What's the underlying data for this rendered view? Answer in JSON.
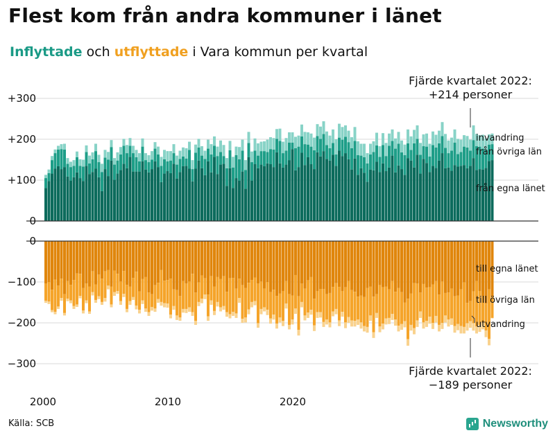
{
  "title": "Flest kom från andra kommuner i länet",
  "subtitle": {
    "part1": "Inflyttade",
    "part2": " och ",
    "part3": "utflyttade",
    "part4": " i Vara kommun per kvartal"
  },
  "annotations": {
    "top": [
      "Fjärde kvartalet 2022:",
      "+214 personer"
    ],
    "bottom": [
      "Fjärde kvartalet 2022:",
      "−189 personer"
    ]
  },
  "source": "Källa: SCB",
  "brand": "Newsworthy",
  "colors": {
    "in_dark": "#0c6b5c",
    "in_mid": "#1e9e88",
    "in_light": "#88d3c7",
    "out_dark": "#e0860c",
    "out_mid": "#f5a42a",
    "out_light": "#f9d28e",
    "grid": "#d8d8d8"
  },
  "chart_data": {
    "type": "bar",
    "stacked": true,
    "x_start": 2000,
    "quarters_per_year": 4,
    "x_ticks": [
      "2000",
      "2010",
      "2020"
    ],
    "y_ticks": [
      "+300",
      "+200",
      "+100",
      "0",
      "0",
      "−100",
      "−200",
      "−300"
    ],
    "ylim_in": [
      0,
      300
    ],
    "ylim_out": [
      -300,
      0
    ],
    "series_labels": {
      "in": [
        "invandring",
        "från övriga län",
        "från egna länet"
      ],
      "out": [
        "till egna länet",
        "till övriga län",
        "utvandring"
      ]
    },
    "inflow": {
      "fran_egna_lanet": [
        81,
        98,
        116,
        128,
        134,
        127,
        132,
        109,
        99,
        107,
        119,
        105,
        98,
        135,
        115,
        120,
        128,
        107,
        73,
        127,
        110,
        148,
        101,
        116,
        125,
        140,
        129,
        157,
        121,
        121,
        121,
        146,
        126,
        119,
        127,
        146,
        132,
        95,
        116,
        122,
        117,
        140,
        104,
        120,
        134,
        135,
        128,
        97,
        128,
        148,
        129,
        112,
        146,
        119,
        157,
        115,
        138,
        140,
        86,
        129,
        81,
        105,
        99,
        121,
        79,
        156,
        99,
        139,
        129,
        138,
        134,
        141,
        139,
        132,
        168,
        141,
        131,
        138,
        149,
        176,
        124,
        132,
        167,
        137,
        156,
        139,
        127,
        168,
        158,
        171,
        152,
        148,
        162,
        135,
        172,
        159,
        166,
        151,
        126,
        153,
        113,
        129,
        118,
        96,
        126,
        124,
        145,
        120,
        141,
        122,
        131,
        160,
        119,
        136,
        127,
        113,
        154,
        148,
        131,
        162,
        116,
        152,
        142,
        120,
        135,
        130,
        148,
        166,
        129,
        131,
        123,
        137,
        133,
        135,
        137,
        129,
        135,
        154,
        125,
        127,
        126,
        130,
        147,
        149
      ],
      "fran_ovriga_lan": [
        24,
        19,
        33,
        38,
        41,
        49,
        43,
        31,
        33,
        28,
        37,
        30,
        35,
        34,
        26,
        31,
        43,
        37,
        47,
        28,
        40,
        33,
        37,
        32,
        38,
        44,
        37,
        27,
        45,
        35,
        25,
        36,
        23,
        25,
        23,
        31,
        31,
        40,
        35,
        24,
        31,
        26,
        34,
        32,
        24,
        18,
        46,
        30,
        39,
        32,
        31,
        40,
        31,
        44,
        27,
        44,
        31,
        19,
        43,
        44,
        50,
        56,
        52,
        51,
        46,
        35,
        45,
        33,
        31,
        33,
        37,
        28,
        37,
        43,
        33,
        55,
        35,
        34,
        43,
        16,
        54,
        50,
        40,
        51,
        31,
        43,
        46,
        40,
        43,
        42,
        34,
        30,
        29,
        28,
        32,
        40,
        40,
        42,
        52,
        43,
        48,
        31,
        38,
        45,
        37,
        45,
        40,
        37,
        45,
        37,
        53,
        36,
        58,
        53,
        41,
        48,
        36,
        26,
        59,
        39,
        46,
        31,
        40,
        38,
        51,
        50,
        42,
        42,
        50,
        35,
        49,
        55,
        31,
        34,
        45,
        51,
        37,
        44,
        58,
        55,
        51,
        45,
        40,
        39
      ],
      "invandring": [
        8,
        9,
        10,
        9,
        9,
        12,
        14,
        14,
        13,
        14,
        14,
        16,
        17,
        16,
        19,
        17,
        18,
        18,
        20,
        19,
        19,
        17,
        16,
        20,
        18,
        17,
        20,
        19,
        18,
        18,
        20,
        20,
        17,
        17,
        21,
        16,
        19,
        22,
        23,
        25,
        23,
        22,
        22,
        20,
        22,
        25,
        20,
        22,
        20,
        21,
        23,
        20,
        22,
        25,
        23,
        23,
        28,
        27,
        25,
        23,
        26,
        21,
        30,
        27,
        24,
        27,
        26,
        30,
        30,
        23,
        24,
        30,
        29,
        28,
        24,
        30,
        28,
        31,
        25,
        25,
        28,
        27,
        29,
        30,
        30,
        32,
        31,
        29,
        30,
        31,
        33,
        31,
        33,
        37,
        34,
        31,
        28,
        28,
        27,
        34,
        34,
        29,
        33,
        25,
        26,
        26,
        31,
        26,
        29,
        32,
        30,
        28,
        25,
        29,
        29,
        26,
        34,
        33,
        33,
        33,
        29,
        29,
        32,
        31,
        33,
        31,
        31,
        34,
        34,
        31,
        32,
        32,
        37,
        30,
        28,
        28,
        27,
        36,
        30,
        28,
        34,
        27,
        25,
        26
      ]
    },
    "outflow": {
      "till_egna_lanet": [
        -104,
        -100,
        -119,
        -94,
        -109,
        -92,
        -130,
        -98,
        -107,
        -95,
        -79,
        -80,
        -115,
        -104,
        -111,
        -74,
        -106,
        -82,
        -92,
        -74,
        -71,
        -111,
        -72,
        -80,
        -99,
        -73,
        -107,
        -111,
        -90,
        -75,
        -123,
        -93,
        -88,
        -126,
        -130,
        -108,
        -102,
        -71,
        -97,
        -95,
        -92,
        -118,
        -120,
        -134,
        -98,
        -104,
        -99,
        -80,
        -126,
        -101,
        -84,
        -91,
        -131,
        -86,
        -111,
        -88,
        -93,
        -86,
        -124,
        -91,
        -90,
        -116,
        -92,
        -108,
        -115,
        -102,
        -95,
        -89,
        -104,
        -99,
        -116,
        -100,
        -125,
        -119,
        -134,
        -128,
        -122,
        -98,
        -130,
        -133,
        -83,
        -135,
        -104,
        -116,
        -96,
        -88,
        -141,
        -122,
        -117,
        -117,
        -130,
        -127,
        -112,
        -103,
        -112,
        -122,
        -113,
        -98,
        -120,
        -124,
        -136,
        -133,
        -137,
        -115,
        -111,
        -136,
        -130,
        -108,
        -113,
        -111,
        -118,
        -98,
        -124,
        -115,
        -125,
        -150,
        -141,
        -128,
        -103,
        -104,
        -126,
        -105,
        -114,
        -113,
        -106,
        -98,
        -131,
        -99,
        -127,
        -126,
        -116,
        -135,
        -133,
        -118,
        -101,
        -151,
        -147,
        -123,
        -98,
        -122,
        -135,
        -153,
        -118,
        -136
      ],
      "till_ovriga_lan": [
        -42,
        -48,
        -50,
        -79,
        -51,
        -47,
        -46,
        -43,
        -38,
        -64,
        -76,
        -54,
        -55,
        -41,
        -61,
        -51,
        -38,
        -53,
        -57,
        -65,
        -38,
        -44,
        -53,
        -42,
        -48,
        -56,
        -59,
        -36,
        -47,
        -83,
        -45,
        -52,
        -77,
        -48,
        -31,
        -57,
        -40,
        -78,
        -55,
        -58,
        -88,
        -41,
        -62,
        -53,
        -68,
        -62,
        -63,
        -94,
        -69,
        -48,
        -57,
        -40,
        -53,
        -59,
        -60,
        -61,
        -69,
        -73,
        -50,
        -88,
        -83,
        -61,
        -47,
        -82,
        -72,
        -65,
        -54,
        -58,
        -97,
        -67,
        -46,
        -68,
        -64,
        -61,
        -68,
        -59,
        -73,
        -55,
        -75,
        -59,
        -82,
        -82,
        -45,
        -66,
        -79,
        -80,
        -65,
        -52,
        -57,
        -81,
        -62,
        -72,
        -60,
        -63,
        -82,
        -51,
        -86,
        -88,
        -74,
        -71,
        -56,
        -66,
        -71,
        -95,
        -71,
        -87,
        -46,
        -101,
        -89,
        -78,
        -70,
        -80,
        -68,
        -92,
        -78,
        -46,
        -99,
        -77,
        -110,
        -90,
        -46,
        -94,
        -81,
        -72,
        -94,
        -85,
        -74,
        -101,
        -55,
        -66,
        -73,
        -73,
        -70,
        -90,
        -109,
        -50,
        -49,
        -78,
        -111,
        -83,
        -64,
        -66,
        -121,
        -52
      ],
      "utvandring": [
        -5,
        -6,
        -5,
        -6,
        -6,
        -7,
        -6,
        -6,
        -7,
        -7,
        -6,
        -6,
        -7,
        -7,
        -6,
        -8,
        -7,
        -7,
        -7,
        -9,
        -9,
        -7,
        -9,
        -7,
        -9,
        -8,
        -8,
        -9,
        -7,
        -9,
        -9,
        -9,
        -8,
        -9,
        -9,
        -8,
        -9,
        -9,
        -10,
        -10,
        -9,
        -9,
        -11,
        -8,
        -9,
        -10,
        -11,
        -9,
        -10,
        -10,
        -11,
        -11,
        -11,
        -11,
        -10,
        -11,
        -10,
        -9,
        -11,
        -10,
        -10,
        -11,
        -12,
        -10,
        -12,
        -12,
        -13,
        -10,
        -11,
        -13,
        -10,
        -13,
        -13,
        -12,
        -12,
        -12,
        -13,
        -12,
        -11,
        -12,
        -13,
        -14,
        -13,
        -12,
        -13,
        -12,
        -14,
        -14,
        -13,
        -12,
        -12,
        -12,
        -12,
        -13,
        -14,
        -12,
        -14,
        -14,
        -15,
        -14,
        -13,
        -15,
        -13,
        -14,
        -13,
        -14,
        -12,
        -14,
        -14,
        -15,
        -15,
        -15,
        -15,
        -14,
        -14,
        -15,
        -16,
        -14,
        -15,
        -16,
        -16,
        -15,
        -15,
        -17,
        -15,
        -16,
        -16,
        -15,
        -17,
        -17,
        -16,
        -16,
        -15,
        -18,
        -16,
        -18,
        -16,
        -18,
        -17,
        -17,
        -17,
        -16,
        -16,
        -1
      ]
    }
  }
}
